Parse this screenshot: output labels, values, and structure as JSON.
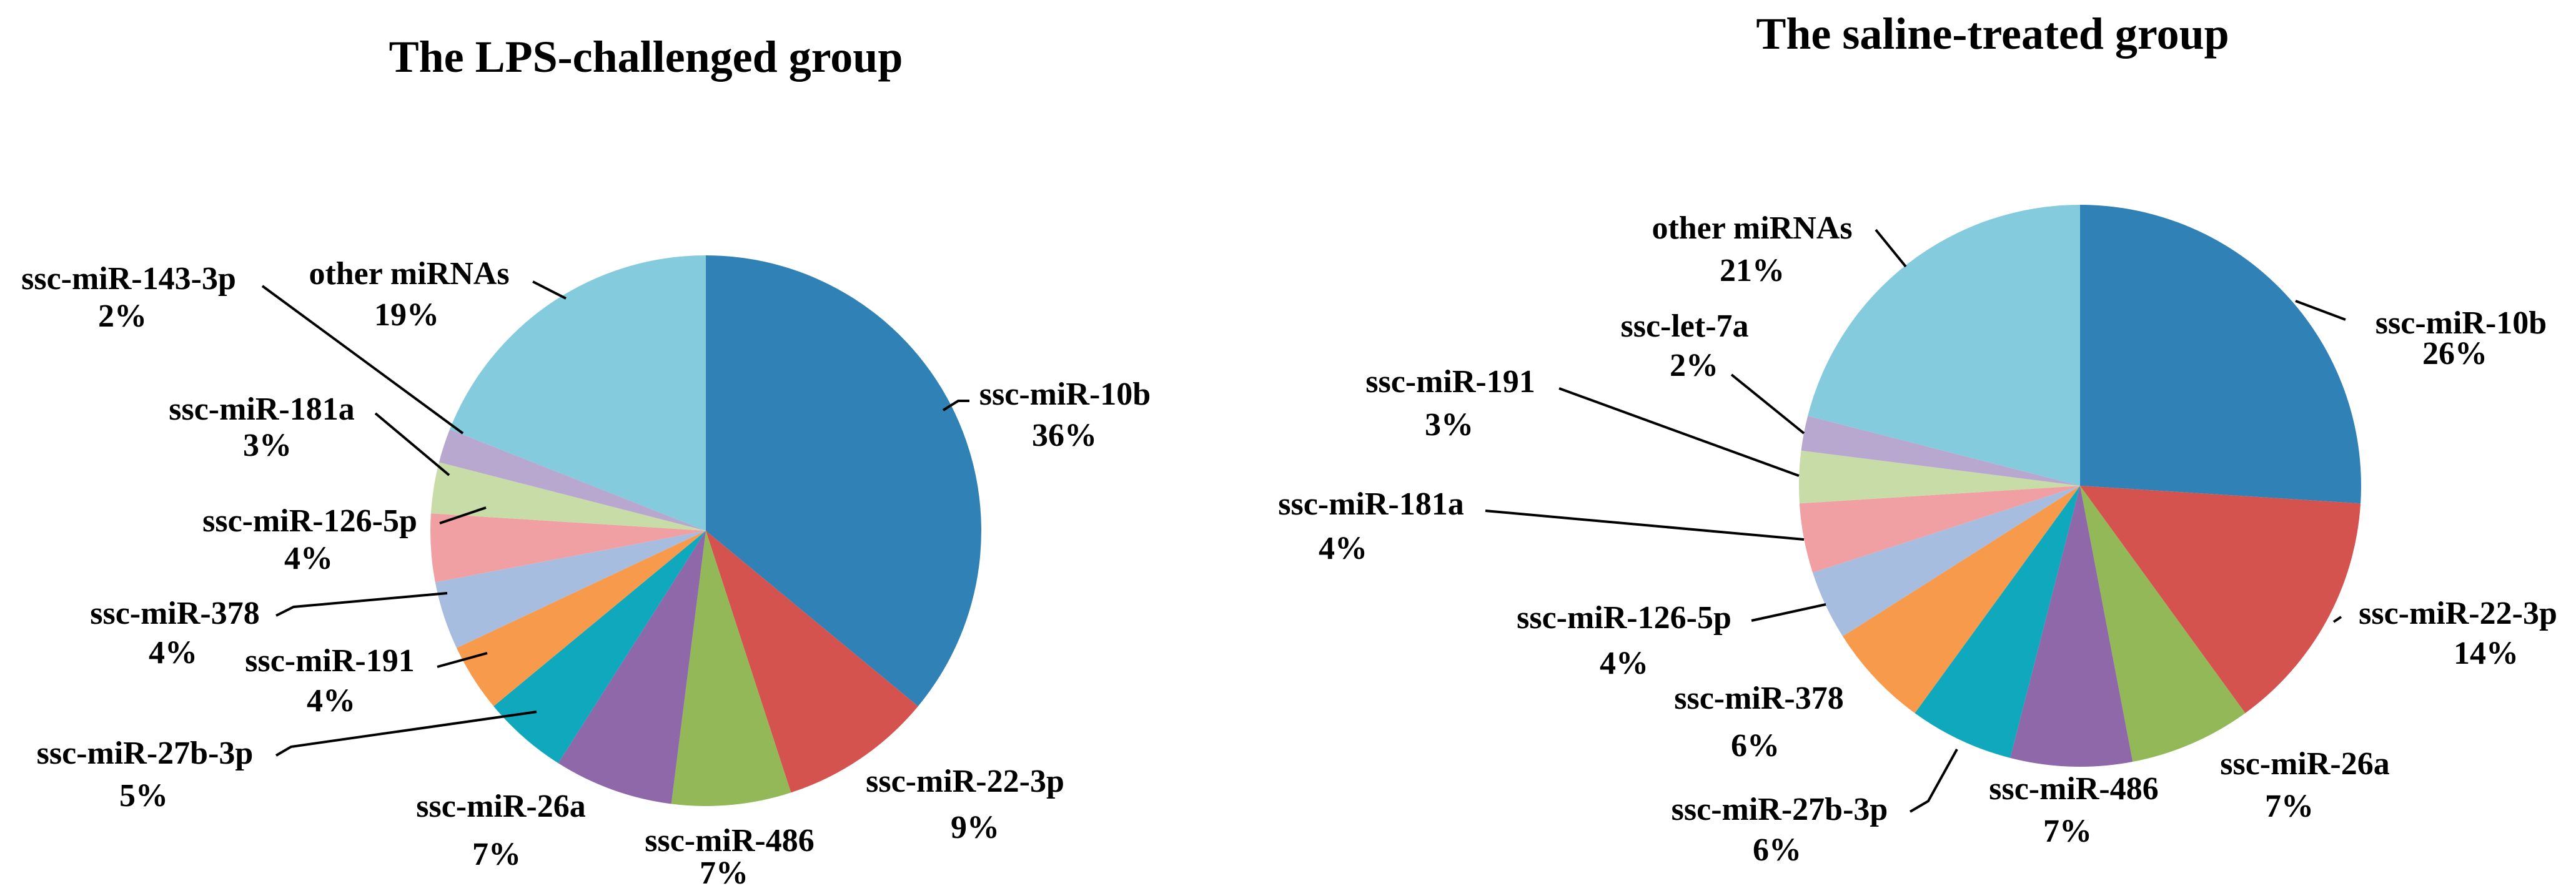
{
  "figure": {
    "background_color": "#ffffff",
    "text_color": "#000000"
  },
  "chart_data": [
    {
      "type": "pie",
      "title": "The LPS-challenged group",
      "legend": "none",
      "labels_position": "outside-callouts",
      "direction": "clockwise",
      "start_angle_deg": 0,
      "labels": [
        "ssc-miR-10b",
        "ssc-miR-22-3p",
        "ssc-miR-486",
        "ssc-miR-26a",
        "ssc-miR-27b-3p",
        "ssc-miR-191",
        "ssc-miR-378",
        "ssc-miR-126-5p",
        "ssc-miR-181a",
        "ssc-miR-143-3p",
        "other miRNAs"
      ],
      "values": [
        36,
        9,
        7,
        7,
        5,
        4,
        4,
        4,
        3,
        2,
        19
      ],
      "pct_labels": [
        "36%",
        "9%",
        "7%",
        "7%",
        "5%",
        "4%",
        "4%",
        "4%",
        "3%",
        "2%",
        "19%"
      ],
      "colors": [
        "#3081b6",
        "#d5534e",
        "#92b857",
        "#8e68a8",
        "#0fa8bc",
        "#f89a4b",
        "#a7bddf",
        "#f0a0a3",
        "#c7dca6",
        "#b8a7cf",
        "#84cbdd"
      ]
    },
    {
      "type": "pie",
      "title": "The saline-treated group",
      "legend": "none",
      "labels_position": "outside-callouts",
      "direction": "clockwise",
      "start_angle_deg": 0,
      "labels": [
        "ssc-miR-10b",
        "ssc-miR-22-3p",
        "ssc-miR-26a",
        "ssc-miR-486",
        "ssc-miR-27b-3p",
        "ssc-miR-378",
        "ssc-miR-126-5p",
        "ssc-miR-181a",
        "ssc-miR-191",
        "ssc-let-7a",
        "other miRNAs"
      ],
      "values": [
        26,
        14,
        7,
        7,
        6,
        6,
        4,
        4,
        3,
        2,
        21
      ],
      "pct_labels": [
        "26%",
        "14%",
        "7%",
        "7%",
        "6%",
        "6%",
        "4%",
        "4%",
        "3%",
        "2%",
        "21%"
      ],
      "colors": [
        "#3081b6",
        "#d5534e",
        "#92b857",
        "#8e68a8",
        "#0fa8bc",
        "#f89a4b",
        "#a7bddf",
        "#f0a0a3",
        "#c7dca6",
        "#b8a7cf",
        "#84cbdd"
      ]
    }
  ]
}
